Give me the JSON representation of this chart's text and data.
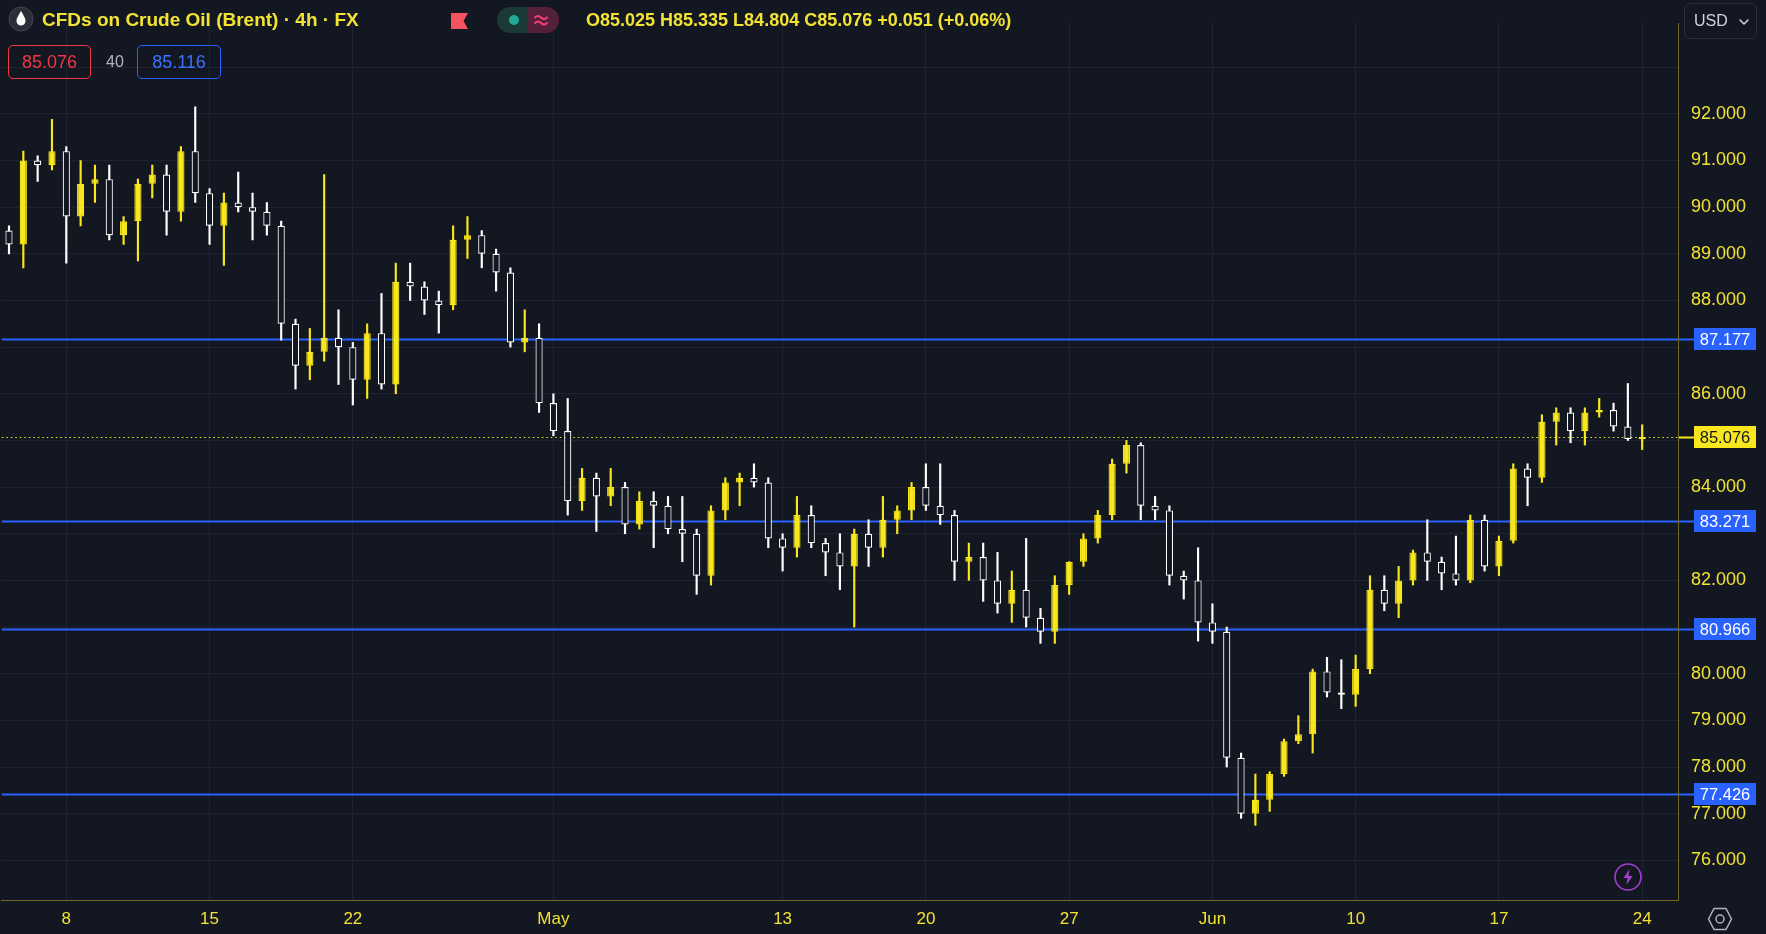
{
  "chart_data": {
    "type": "candlestick",
    "title": "CFDs on Crude Oil (Brent) · 4h · FX",
    "subtitle": "O85.025 H85.335 L84.804 C85.076 +0.051 (+0.06%)",
    "annotations": [
      "85.076",
      "40",
      "85.116",
      "USD"
    ],
    "categories": [
      null,
      null,
      null,
      null,
      "8",
      null,
      null,
      null,
      null,
      null,
      null,
      null,
      null,
      null,
      "15",
      null,
      null,
      null,
      null,
      null,
      null,
      null,
      null,
      null,
      "22",
      null,
      null,
      null,
      null,
      null,
      null,
      null,
      null,
      null,
      null,
      null,
      null,
      null,
      "May",
      null,
      null,
      null,
      null,
      null,
      null,
      null,
      null,
      null,
      null,
      null,
      null,
      null,
      null,
      null,
      "13",
      null,
      null,
      null,
      null,
      null,
      null,
      null,
      null,
      null,
      "20",
      null,
      null,
      null,
      null,
      null,
      null,
      null,
      null,
      null,
      "27",
      null,
      null,
      null,
      null,
      null,
      null,
      null,
      null,
      null,
      "Jun",
      null,
      null,
      null,
      null,
      null,
      null,
      null,
      null,
      null,
      "10",
      null,
      null,
      null,
      null,
      null,
      null,
      null,
      null,
      null,
      "17",
      null,
      null,
      null,
      null,
      null,
      null,
      null,
      null,
      null,
      "24",
      null,
      null
    ],
    "ohlc": [
      [
        89.5,
        89.6,
        89.0,
        89.2
      ],
      [
        89.2,
        91.2,
        88.7,
        91.0
      ],
      [
        91.0,
        91.1,
        90.55,
        90.9
      ],
      [
        90.9,
        91.88,
        90.8,
        91.2
      ],
      [
        91.2,
        91.3,
        88.8,
        89.8
      ],
      [
        89.8,
        91.0,
        89.6,
        90.5
      ],
      [
        90.5,
        90.9,
        90.1,
        90.6
      ],
      [
        90.6,
        90.9,
        89.3,
        89.4
      ],
      [
        89.4,
        89.8,
        89.2,
        89.7
      ],
      [
        89.7,
        90.6,
        88.85,
        90.5
      ],
      [
        90.5,
        90.9,
        90.2,
        90.7
      ],
      [
        90.7,
        90.9,
        89.4,
        89.9
      ],
      [
        89.9,
        91.3,
        89.7,
        91.2
      ],
      [
        91.2,
        92.15,
        90.1,
        90.3
      ],
      [
        90.3,
        90.4,
        89.2,
        89.6
      ],
      [
        89.6,
        90.3,
        88.75,
        90.1
      ],
      [
        90.1,
        90.75,
        89.9,
        90.0
      ],
      [
        90.0,
        90.3,
        89.3,
        89.9
      ],
      [
        89.9,
        90.1,
        89.4,
        89.6
      ],
      [
        89.6,
        89.7,
        87.15,
        87.5
      ],
      [
        87.5,
        87.6,
        86.1,
        86.6
      ],
      [
        86.6,
        87.4,
        86.3,
        86.9
      ],
      [
        86.9,
        90.7,
        86.7,
        87.2
      ],
      [
        87.2,
        87.8,
        86.2,
        87.0
      ],
      [
        87.0,
        87.1,
        85.76,
        86.3
      ],
      [
        86.3,
        87.5,
        85.9,
        87.3
      ],
      [
        87.3,
        88.15,
        86.1,
        86.2
      ],
      [
        86.2,
        88.8,
        86.0,
        88.4
      ],
      [
        88.4,
        88.8,
        88.0,
        88.3
      ],
      [
        88.3,
        88.4,
        87.7,
        88.0
      ],
      [
        88.0,
        88.2,
        87.3,
        87.9
      ],
      [
        87.9,
        89.6,
        87.8,
        89.3
      ],
      [
        89.3,
        89.8,
        88.9,
        89.4
      ],
      [
        89.4,
        89.5,
        88.7,
        89.0
      ],
      [
        89.0,
        89.1,
        88.2,
        88.6
      ],
      [
        88.6,
        88.7,
        87.0,
        87.1
      ],
      [
        87.1,
        87.8,
        86.9,
        87.2
      ],
      [
        87.2,
        87.5,
        85.6,
        85.8
      ],
      [
        85.8,
        86.0,
        85.1,
        85.2
      ],
      [
        85.2,
        85.9,
        83.4,
        83.7
      ],
      [
        83.7,
        84.4,
        83.5,
        84.2
      ],
      [
        84.2,
        84.3,
        83.05,
        83.8
      ],
      [
        83.8,
        84.4,
        83.6,
        84.0
      ],
      [
        84.0,
        84.1,
        83.0,
        83.2
      ],
      [
        83.2,
        83.9,
        83.1,
        83.7
      ],
      [
        83.7,
        83.9,
        82.7,
        83.6
      ],
      [
        83.6,
        83.8,
        83.0,
        83.1
      ],
      [
        83.1,
        83.8,
        82.4,
        83.0
      ],
      [
        83.0,
        83.1,
        81.7,
        82.1
      ],
      [
        82.1,
        83.6,
        81.9,
        83.5
      ],
      [
        83.5,
        84.2,
        83.3,
        84.1
      ],
      [
        84.1,
        84.3,
        83.6,
        84.2
      ],
      [
        84.2,
        84.5,
        84.0,
        84.1
      ],
      [
        84.1,
        84.2,
        82.7,
        82.9
      ],
      [
        82.9,
        83.0,
        82.2,
        82.7
      ],
      [
        82.7,
        83.8,
        82.5,
        83.4
      ],
      [
        83.4,
        83.6,
        82.7,
        82.8
      ],
      [
        82.8,
        82.9,
        82.1,
        82.6
      ],
      [
        82.6,
        83.0,
        81.8,
        82.3
      ],
      [
        82.3,
        83.1,
        81.0,
        83.0
      ],
      [
        83.0,
        83.3,
        82.3,
        82.7
      ],
      [
        82.7,
        83.8,
        82.5,
        83.3
      ],
      [
        83.3,
        83.6,
        83.0,
        83.5
      ],
      [
        83.5,
        84.1,
        83.3,
        84.0
      ],
      [
        84.0,
        84.5,
        83.5,
        83.6
      ],
      [
        83.6,
        84.5,
        83.2,
        83.4
      ],
      [
        83.4,
        83.5,
        82.0,
        82.4
      ],
      [
        82.4,
        82.8,
        82.0,
        82.5
      ],
      [
        82.5,
        82.8,
        81.55,
        82.0
      ],
      [
        82.0,
        82.6,
        81.3,
        81.5
      ],
      [
        81.5,
        82.2,
        81.1,
        81.8
      ],
      [
        81.8,
        82.9,
        81.0,
        81.2
      ],
      [
        81.2,
        81.4,
        80.65,
        80.9
      ],
      [
        80.9,
        82.1,
        80.65,
        81.9
      ],
      [
        81.9,
        82.4,
        81.7,
        82.4
      ],
      [
        82.4,
        83.0,
        82.3,
        82.9
      ],
      [
        82.9,
        83.5,
        82.8,
        83.4
      ],
      [
        83.4,
        84.6,
        83.3,
        84.5
      ],
      [
        84.5,
        85.0,
        84.3,
        84.9
      ],
      [
        84.9,
        84.95,
        83.3,
        83.6
      ],
      [
        83.6,
        83.8,
        83.3,
        83.5
      ],
      [
        83.5,
        83.6,
        81.9,
        82.1
      ],
      [
        82.1,
        82.2,
        81.6,
        82.0
      ],
      [
        82.0,
        82.7,
        80.7,
        81.1
      ],
      [
        81.1,
        81.5,
        80.65,
        80.9
      ],
      [
        80.9,
        81.0,
        78.0,
        78.2
      ],
      [
        78.2,
        78.3,
        76.9,
        77.0
      ],
      [
        77.0,
        77.85,
        76.75,
        77.3
      ],
      [
        77.3,
        77.9,
        77.05,
        77.85
      ],
      [
        77.85,
        78.6,
        77.8,
        78.55
      ],
      [
        78.55,
        79.1,
        78.5,
        78.7
      ],
      [
        78.7,
        80.1,
        78.3,
        80.05
      ],
      [
        80.05,
        80.35,
        79.5,
        79.6
      ],
      [
        79.6,
        80.3,
        79.25,
        79.55
      ],
      [
        79.55,
        80.4,
        79.3,
        80.1
      ],
      [
        80.1,
        82.1,
        80.0,
        81.8
      ],
      [
        81.8,
        82.1,
        81.35,
        81.5
      ],
      [
        81.5,
        82.3,
        81.2,
        82.0
      ],
      [
        82.0,
        82.65,
        81.9,
        82.6
      ],
      [
        82.6,
        83.3,
        82.0,
        82.4
      ],
      [
        82.4,
        82.5,
        81.8,
        82.15
      ],
      [
        82.15,
        82.95,
        81.9,
        82.0
      ],
      [
        82.0,
        83.4,
        81.95,
        83.3
      ],
      [
        83.3,
        83.4,
        82.2,
        82.3
      ],
      [
        82.3,
        82.95,
        82.1,
        82.85
      ],
      [
        82.85,
        84.5,
        82.8,
        84.4
      ],
      [
        84.4,
        84.5,
        83.6,
        84.2
      ],
      [
        84.2,
        85.55,
        84.1,
        85.4
      ],
      [
        85.4,
        85.7,
        84.9,
        85.6
      ],
      [
        85.6,
        85.7,
        84.95,
        85.2
      ],
      [
        85.2,
        85.7,
        84.9,
        85.6
      ],
      [
        85.6,
        85.9,
        85.5,
        85.65
      ],
      [
        85.65,
        85.8,
        85.2,
        85.3
      ],
      [
        85.3,
        86.22,
        85.0,
        85.03
      ],
      [
        85.025,
        85.335,
        84.804,
        85.076
      ],
      null,
      null
    ],
    "colors": [
      "#ffffff",
      "#f7e71c",
      "#ffffff",
      "#f7e71c",
      "#ffffff",
      "#f7e71c",
      "#f7e71c",
      "#ffffff",
      "#f7e71c",
      "#f7e71c",
      "#f7e71c",
      "#ffffff",
      "#f7e71c",
      "#ffffff",
      "#ffffff",
      "#f7e71c",
      "#ffffff",
      "#ffffff",
      "#ffffff",
      "#ffffff",
      "#ffffff",
      "#f7e71c",
      "#f7e71c",
      "#ffffff",
      "#ffffff",
      "#f7e71c",
      "#ffffff",
      "#f7e71c",
      "#ffffff",
      "#ffffff",
      "#ffffff",
      "#f7e71c",
      "#f7e71c",
      "#ffffff",
      "#ffffff",
      "#ffffff",
      "#f7e71c",
      "#ffffff",
      "#ffffff",
      "#ffffff",
      "#f7e71c",
      "#ffffff",
      "#f7e71c",
      "#ffffff",
      "#f7e71c",
      "#ffffff",
      "#ffffff",
      "#ffffff",
      "#ffffff",
      "#f7e71c",
      "#f7e71c",
      "#f7e71c",
      "#ffffff",
      "#ffffff",
      "#ffffff",
      "#f7e71c",
      "#ffffff",
      "#ffffff",
      "#ffffff",
      "#f7e71c",
      "#ffffff",
      "#f7e71c",
      "#f7e71c",
      "#f7e71c",
      "#ffffff",
      "#ffffff",
      "#ffffff",
      "#f7e71c",
      "#ffffff",
      "#ffffff",
      "#f7e71c",
      "#ffffff",
      "#ffffff",
      "#f7e71c",
      "#f7e71c",
      "#f7e71c",
      "#f7e71c",
      "#f7e71c",
      "#f7e71c",
      "#ffffff",
      "#ffffff",
      "#ffffff",
      "#ffffff",
      "#ffffff",
      "#ffffff",
      "#ffffff",
      "#ffffff",
      "#f7e71c",
      "#f7e71c",
      "#f7e71c",
      "#f7e71c",
      "#f7e71c",
      "#ffffff",
      "#ffffff",
      "#f7e71c",
      "#f7e71c",
      "#ffffff",
      "#f7e71c",
      "#f7e71c",
      "#ffffff",
      "#ffffff",
      "#ffffff",
      "#f7e71c",
      "#ffffff",
      "#f7e71c",
      "#f7e71c",
      "#ffffff",
      "#f7e71c",
      "#f7e71c",
      "#ffffff",
      "#f7e71c",
      "#f7e71c",
      "#ffffff",
      "#ffffff",
      "#f7e71c",
      null,
      null
    ],
    "ylim": [
      75.15,
      93.93
    ],
    "yticks": [
      {
        "value": 76,
        "label": "76.000"
      },
      {
        "value": 77,
        "label": "77.000"
      },
      {
        "value": 78,
        "label": "78.000"
      },
      {
        "value": 79,
        "label": "79.000"
      },
      {
        "value": 80,
        "label": "80.000"
      },
      {
        "value": 81,
        "label": null
      },
      {
        "value": 82,
        "label": "82.000"
      },
      {
        "value": 83,
        "label": null
      },
      {
        "value": 84,
        "label": "84.000"
      },
      {
        "value": 85,
        "label": null
      },
      {
        "value": 86,
        "label": "86.000"
      },
      {
        "value": 87,
        "label": null
      },
      {
        "value": 88,
        "label": "88.000"
      },
      {
        "value": 89,
        "label": "89.000"
      },
      {
        "value": 90,
        "label": "90.000"
      },
      {
        "value": 91,
        "label": "91.000"
      },
      {
        "value": 92,
        "label": "92.000"
      },
      {
        "value": 93,
        "label": null
      }
    ],
    "grid": true,
    "ref_lines": [
      {
        "axis": "y",
        "value": 87.177,
        "label": "87.177",
        "color": "#2962ff",
        "line_style": "solid"
      },
      {
        "axis": "y",
        "value": 85.076,
        "label": "85.076",
        "color": "#f7e71c",
        "line_style": "dotted"
      },
      {
        "axis": "y",
        "value": 83.271,
        "label": "83.271",
        "color": "#2962ff",
        "line_style": "solid"
      },
      {
        "axis": "y",
        "value": 80.966,
        "label": "80.966",
        "color": "#2962ff",
        "line_style": "solid"
      },
      {
        "axis": "y",
        "value": 77.426,
        "label": "77.426",
        "color": "#2962ff",
        "line_style": "solid"
      }
    ]
  }
}
